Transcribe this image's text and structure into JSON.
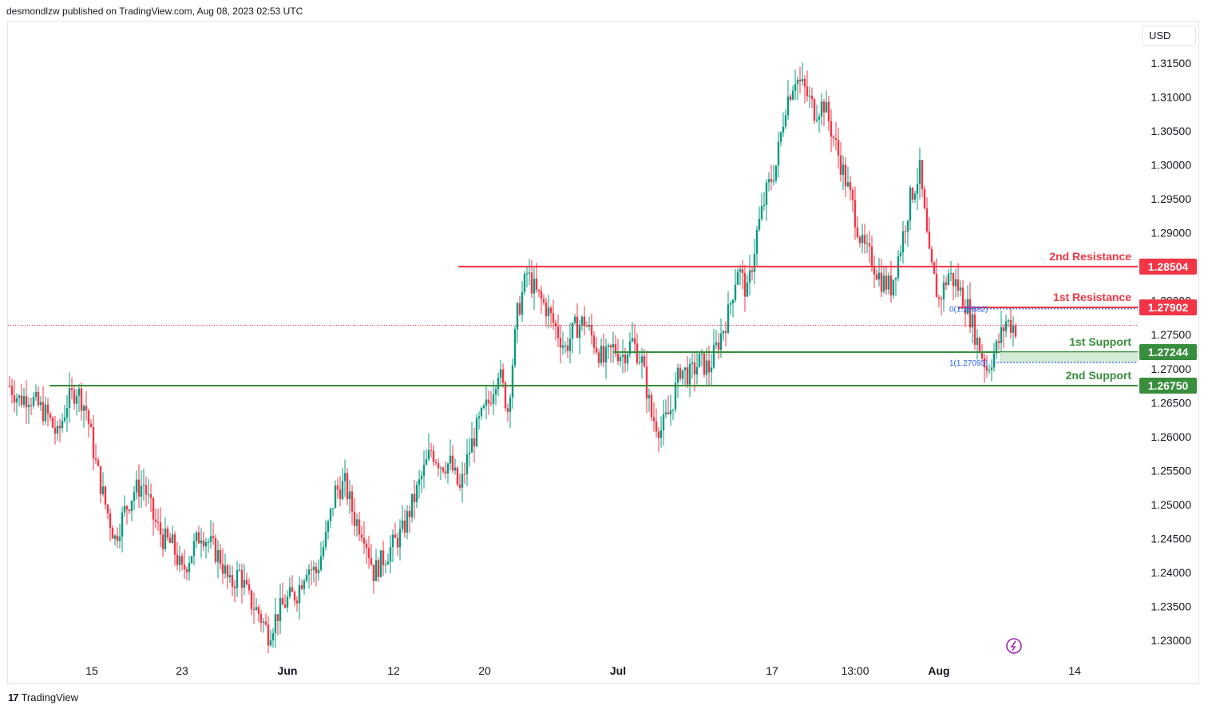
{
  "header": {
    "text": "desmondlzw published on TradingView.com, Aug 08, 2023 02:53 UTC"
  },
  "currency": "USD",
  "footer": {
    "brand": "TradingView",
    "logo_glyph": "17"
  },
  "colors": {
    "up": "#089981",
    "down": "#f23645",
    "resistance": "#f23645",
    "support": "#388e3c",
    "zone": "#c8e6c9",
    "fib": "#2962ff",
    "current": "#f23645"
  },
  "chart_data": {
    "type": "candlestick",
    "title": "",
    "ylim": [
      1.225,
      1.318
    ],
    "y_ticks": [
      "1.31500",
      "1.31000",
      "1.30500",
      "1.30000",
      "1.29500",
      "1.29000",
      "1.28500",
      "1.28000",
      "1.27500",
      "1.27000",
      "1.26500",
      "1.26000",
      "1.25500",
      "1.25000",
      "1.24500",
      "1.24000",
      "1.23500",
      "1.23000"
    ],
    "x_ticks": [
      "15",
      "23",
      "Jun",
      "12",
      "20",
      "Jul",
      "17",
      "13:00",
      "Aug",
      "14"
    ],
    "current_price": 1.2764,
    "levels": [
      {
        "name": "2nd Resistance",
        "value": 1.28504,
        "label": "1.28504",
        "kind": "resistance"
      },
      {
        "name": "1st Resistance",
        "value": 1.27902,
        "label": "1.27902",
        "kind": "resistance"
      },
      {
        "name": "1st Support",
        "value": 1.27244,
        "label": "1.27244",
        "kind": "support"
      },
      {
        "name": "2nd Support",
        "value": 1.2675,
        "label": "1.26750",
        "kind": "support"
      }
    ],
    "fib": {
      "top_label": "0(1.27882)",
      "bottom_label": "1(1.27093)",
      "top": 1.27882,
      "bottom": 1.27093
    },
    "close_path": [
      1.2675,
      1.2655,
      1.266,
      1.2645,
      1.263,
      1.26,
      1.265,
      1.267,
      1.264,
      1.256,
      1.25,
      1.245,
      1.249,
      1.252,
      1.253,
      1.248,
      1.245,
      1.244,
      1.24,
      1.243,
      1.246,
      1.244,
      1.242,
      1.238,
      1.24,
      1.236,
      1.234,
      1.231,
      1.234,
      1.236,
      1.237,
      1.241,
      1.24,
      1.245,
      1.252,
      1.253,
      1.248,
      1.246,
      1.24,
      1.242,
      1.244,
      1.246,
      1.25,
      1.254,
      1.258,
      1.256,
      1.256,
      1.252,
      1.258,
      1.262,
      1.265,
      1.27,
      1.264,
      1.278,
      1.284,
      1.281,
      1.279,
      1.276,
      1.273,
      1.276,
      1.277,
      1.274,
      1.271,
      1.273,
      1.272,
      1.274,
      1.271,
      1.263,
      1.261,
      1.264,
      1.27,
      1.269,
      1.271,
      1.27,
      1.274,
      1.278,
      1.285,
      1.281,
      1.29,
      1.296,
      1.3,
      1.309,
      1.313,
      1.311,
      1.308,
      1.309,
      1.304,
      1.299,
      1.294,
      1.288,
      1.286,
      1.283,
      1.282,
      1.288,
      1.295,
      1.299,
      1.286,
      1.28,
      1.284,
      1.282,
      1.279,
      1.274,
      1.27,
      1.273,
      1.277,
      1.276
    ]
  }
}
